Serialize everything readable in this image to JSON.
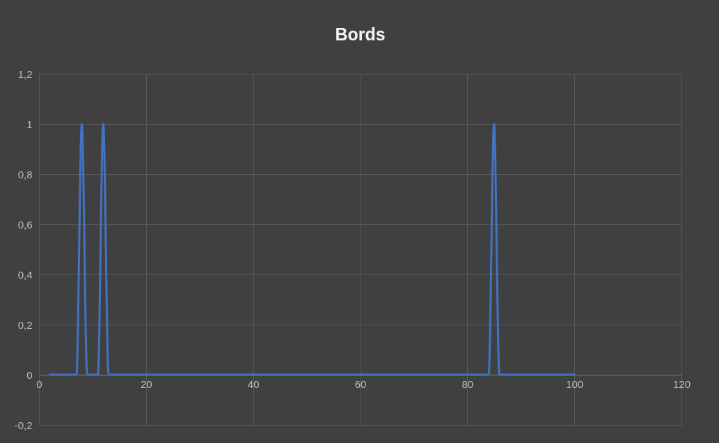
{
  "chart_data": {
    "type": "line",
    "title": "Bords",
    "x": [
      2,
      7,
      8,
      9,
      10,
      11,
      12,
      13,
      14,
      84,
      85,
      86,
      87,
      100
    ],
    "series": [
      {
        "color": "#4472c4",
        "values": [
          0,
          0,
          1,
          0,
          0,
          0,
          1,
          0,
          0,
          0,
          1,
          0,
          0,
          0
        ]
      }
    ],
    "xlim": [
      0,
      120
    ],
    "xticks": [
      0,
      20,
      40,
      60,
      80,
      100,
      120
    ],
    "ylim": [
      -0.2,
      1.2
    ],
    "yticks": [
      {
        "value": -0.2,
        "label": "-0,2"
      },
      0,
      {
        "value": 0.2,
        "label": "0,2"
      },
      {
        "value": 0.4,
        "label": "0,4"
      },
      {
        "value": 0.6,
        "label": "0,6"
      },
      {
        "value": 0.8,
        "label": "0,8"
      },
      1,
      {
        "value": 1.2,
        "label": "1,2"
      }
    ],
    "grid": true,
    "marker": "none",
    "line_style": "solid"
  }
}
